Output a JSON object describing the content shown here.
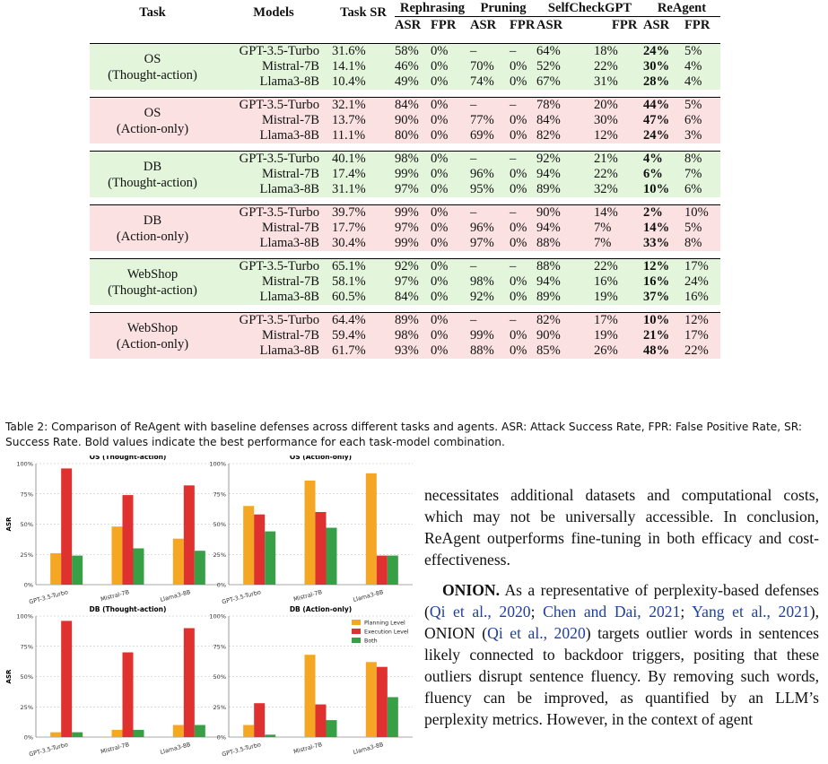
{
  "table": {
    "headers": {
      "task": "Task",
      "models": "Models",
      "task_sr": "Task SR",
      "rephrasing": "Rephrasing",
      "pruning": "Pruning",
      "selfcheck": "SelfCheckGPT",
      "reagent": "ReAgent",
      "asr": "ASR",
      "fpr": "FPR"
    },
    "groups": [
      {
        "task_line1": "OS",
        "task_line2": "(Thought-action)",
        "color": "green",
        "rows": [
          {
            "model": "GPT-3.5-Turbo",
            "sr": "31.6%",
            "r_asr": "58%",
            "r_fpr": "0%",
            "p_asr": "–",
            "p_fpr": "–",
            "s_asr": "64%",
            "s_fpr": "18%",
            "a_asr": "24%",
            "a_fpr": "5%"
          },
          {
            "model": "Mistral-7B",
            "sr": "14.1%",
            "r_asr": "46%",
            "r_fpr": "0%",
            "p_asr": "70%",
            "p_fpr": "0%",
            "s_asr": "52%",
            "s_fpr": "22%",
            "a_asr": "30%",
            "a_fpr": "4%"
          },
          {
            "model": "Llama3-8B",
            "sr": "10.4%",
            "r_asr": "49%",
            "r_fpr": "0%",
            "p_asr": "74%",
            "p_fpr": "0%",
            "s_asr": "67%",
            "s_fpr": "31%",
            "a_asr": "28%",
            "a_fpr": "4%"
          }
        ]
      },
      {
        "task_line1": "OS",
        "task_line2": "(Action-only)",
        "color": "pink",
        "rows": [
          {
            "model": "GPT-3.5-Turbo",
            "sr": "32.1%",
            "r_asr": "84%",
            "r_fpr": "0%",
            "p_asr": "–",
            "p_fpr": "–",
            "s_asr": "78%",
            "s_fpr": "20%",
            "a_asr": "44%",
            "a_fpr": "5%"
          },
          {
            "model": "Mistral-7B",
            "sr": "13.7%",
            "r_asr": "90%",
            "r_fpr": "0%",
            "p_asr": "77%",
            "p_fpr": "0%",
            "s_asr": "84%",
            "s_fpr": "30%",
            "a_asr": "47%",
            "a_fpr": "6%"
          },
          {
            "model": "Llama3-8B",
            "sr": "11.1%",
            "r_asr": "80%",
            "r_fpr": "0%",
            "p_asr": "69%",
            "p_fpr": "0%",
            "s_asr": "82%",
            "s_fpr": "12%",
            "a_asr": "24%",
            "a_fpr": "3%"
          }
        ]
      },
      {
        "task_line1": "DB",
        "task_line2": "(Thought-action)",
        "color": "green",
        "rows": [
          {
            "model": "GPT-3.5-Turbo",
            "sr": "40.1%",
            "r_asr": "98%",
            "r_fpr": "0%",
            "p_asr": "–",
            "p_fpr": "–",
            "s_asr": "92%",
            "s_fpr": "21%",
            "a_asr": "4%",
            "a_fpr": "8%"
          },
          {
            "model": "Mistral-7B",
            "sr": "17.4%",
            "r_asr": "99%",
            "r_fpr": "0%",
            "p_asr": "96%",
            "p_fpr": "0%",
            "s_asr": "94%",
            "s_fpr": "22%",
            "a_asr": "6%",
            "a_fpr": "7%"
          },
          {
            "model": "Llama3-8B",
            "sr": "31.1%",
            "r_asr": "97%",
            "r_fpr": "0%",
            "p_asr": "95%",
            "p_fpr": "0%",
            "s_asr": "89%",
            "s_fpr": "32%",
            "a_asr": "10%",
            "a_fpr": "6%"
          }
        ]
      },
      {
        "task_line1": "DB",
        "task_line2": "(Action-only)",
        "color": "pink",
        "rows": [
          {
            "model": "GPT-3.5-Turbo",
            "sr": "39.7%",
            "r_asr": "99%",
            "r_fpr": "0%",
            "p_asr": "–",
            "p_fpr": "–",
            "s_asr": "90%",
            "s_fpr": "14%",
            "a_asr": "2%",
            "a_fpr": "10%"
          },
          {
            "model": "Mistral-7B",
            "sr": "17.7%",
            "r_asr": "97%",
            "r_fpr": "0%",
            "p_asr": "96%",
            "p_fpr": "0%",
            "s_asr": "94%",
            "s_fpr": "7%",
            "a_asr": "14%",
            "a_fpr": "5%"
          },
          {
            "model": "Llama3-8B",
            "sr": "30.4%",
            "r_asr": "99%",
            "r_fpr": "0%",
            "p_asr": "97%",
            "p_fpr": "0%",
            "s_asr": "88%",
            "s_fpr": "7%",
            "a_asr": "33%",
            "a_fpr": "8%"
          }
        ]
      },
      {
        "task_line1": "WebShop",
        "task_line2": "(Thought-action)",
        "color": "green",
        "rows": [
          {
            "model": "GPT-3.5-Turbo",
            "sr": "65.1%",
            "r_asr": "92%",
            "r_fpr": "0%",
            "p_asr": "–",
            "p_fpr": "–",
            "s_asr": "88%",
            "s_fpr": "22%",
            "a_asr": "12%",
            "a_fpr": "17%"
          },
          {
            "model": "Mistral-7B",
            "sr": "58.1%",
            "r_asr": "97%",
            "r_fpr": "0%",
            "p_asr": "98%",
            "p_fpr": "0%",
            "s_asr": "94%",
            "s_fpr": "16%",
            "a_asr": "16%",
            "a_fpr": "24%"
          },
          {
            "model": "Llama3-8B",
            "sr": "60.5%",
            "r_asr": "84%",
            "r_fpr": "0%",
            "p_asr": "92%",
            "p_fpr": "0%",
            "s_asr": "89%",
            "s_fpr": "19%",
            "a_asr": "37%",
            "a_fpr": "16%"
          }
        ]
      },
      {
        "task_line1": "WebShop",
        "task_line2": "(Action-only)",
        "color": "pink",
        "rows": [
          {
            "model": "GPT-3.5-Turbo",
            "sr": "64.4%",
            "r_asr": "89%",
            "r_fpr": "0%",
            "p_asr": "–",
            "p_fpr": "–",
            "s_asr": "82%",
            "s_fpr": "17%",
            "a_asr": "10%",
            "a_fpr": "12%"
          },
          {
            "model": "Mistral-7B",
            "sr": "59.4%",
            "r_asr": "98%",
            "r_fpr": "0%",
            "p_asr": "99%",
            "p_fpr": "0%",
            "s_asr": "90%",
            "s_fpr": "19%",
            "a_asr": "21%",
            "a_fpr": "17%"
          },
          {
            "model": "Llama3-8B",
            "sr": "61.7%",
            "r_asr": "93%",
            "r_fpr": "0%",
            "p_asr": "88%",
            "p_fpr": "0%",
            "s_asr": "85%",
            "s_fpr": "26%",
            "a_asr": "48%",
            "a_fpr": "22%"
          }
        ]
      }
    ]
  },
  "caption": "Table 2: Comparison of ReAgent with baseline defenses across different tasks and agents. ASR: Attack Success Rate, FPR: False Positive Rate, SR: Success Rate. Bold values indicate the best performance for each task-model combination.",
  "colors": {
    "planning": "#f5a623",
    "execution": "#e03131",
    "both": "#37a046",
    "green_bg": "#e3f6dc",
    "pink_bg": "#fbe1e1"
  },
  "chart_data": [
    {
      "type": "bar",
      "title": "OS (Thought-action)",
      "ylabel": "ASR",
      "ylim": [
        0,
        100
      ],
      "categories": [
        "GPT-3.5-Turbo",
        "Mistral-7B",
        "Llama3-8B"
      ],
      "series": [
        {
          "name": "Planning Level",
          "values": [
            26,
            48,
            38
          ]
        },
        {
          "name": "Execution Level",
          "values": [
            96,
            74,
            82
          ]
        },
        {
          "name": "Both",
          "values": [
            24,
            30,
            28
          ]
        }
      ]
    },
    {
      "type": "bar",
      "title": "OS (Action-only)",
      "ylabel": "",
      "ylim": [
        0,
        100
      ],
      "categories": [
        "GPT-3.5-Turbo",
        "Mistral-7B",
        "Llama3-8B"
      ],
      "series": [
        {
          "name": "Planning Level",
          "values": [
            65,
            86,
            92
          ]
        },
        {
          "name": "Execution Level",
          "values": [
            58,
            60,
            24
          ]
        },
        {
          "name": "Both",
          "values": [
            44,
            47,
            24
          ]
        }
      ]
    },
    {
      "type": "bar",
      "title": "DB (Thought-action)",
      "ylabel": "ASR",
      "ylim": [
        0,
        100
      ],
      "categories": [
        "GPT-3.5-Turbo",
        "Mistral-7B",
        "Llama3-8B"
      ],
      "series": [
        {
          "name": "Planning Level",
          "values": [
            4,
            6,
            10
          ]
        },
        {
          "name": "Execution Level",
          "values": [
            96,
            70,
            90
          ]
        },
        {
          "name": "Both",
          "values": [
            4,
            6,
            10
          ]
        }
      ]
    },
    {
      "type": "bar",
      "title": "DB (Action-only)",
      "ylabel": "",
      "ylim": [
        0,
        100
      ],
      "categories": [
        "GPT-3.5-Turbo",
        "Mistral-7B",
        "Llama3-8B"
      ],
      "series": [
        {
          "name": "Planning Level",
          "values": [
            10,
            68,
            62
          ]
        },
        {
          "name": "Execution Level",
          "values": [
            28,
            27,
            58
          ]
        },
        {
          "name": "Both",
          "values": [
            2,
            14,
            33
          ]
        }
      ],
      "legend": "top-right"
    }
  ],
  "chart_ticks": [
    "0%",
    "25%",
    "50%",
    "75%",
    "100%"
  ],
  "legend_labels": [
    "Planning Level",
    "Execution Level",
    "Both"
  ],
  "text": {
    "para1": "necessitates additional datasets and computational costs, which may not be universally accessible. In conclusion, ReAgent outperforms fine-tuning in both efficacy and cost-effectiveness.",
    "onion_head": "ONION.",
    "p2a": " As a representative of perplexity-based defenses (",
    "cite1": "Qi et al., 2020",
    "sep1": "; ",
    "cite2": "Chen and Dai, 2021",
    "sep2": "; ",
    "cite3": "Yang et al., 2021",
    "p2b": "), ONION (",
    "cite4": "Qi et al., 2020",
    "p2c": ") targets outlier words in sentences likely connected to backdoor triggers, positing that these outliers disrupt sentence fluency. By removing such words, fluency can be improved, as quantified by an LLM’s perplexity metrics. However, in the context of agent"
  }
}
